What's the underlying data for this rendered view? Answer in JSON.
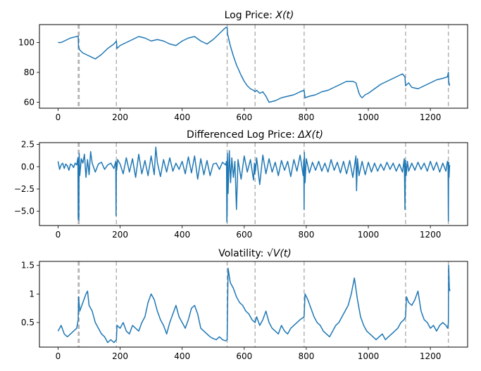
{
  "chart_data": [
    {
      "type": "line",
      "title": "Log Price: X(t)",
      "title_parts": {
        "main": "Log Price: ",
        "math": "X(t)"
      },
      "xlim": [
        -60,
        1320
      ],
      "ylim": [
        56,
        112
      ],
      "xticks": [
        0,
        200,
        400,
        600,
        800,
        1000,
        1200
      ],
      "yticks": [
        60,
        80,
        100
      ],
      "vlines": [
        65,
        68,
        188,
        545,
        635,
        793,
        1120,
        1258
      ],
      "series": [
        {
          "name": "log price",
          "color": "#1f77b4",
          "x": [
            0,
            10,
            20,
            30,
            40,
            50,
            60,
            65,
            66,
            70,
            80,
            100,
            120,
            140,
            160,
            180,
            188,
            190,
            200,
            220,
            240,
            260,
            280,
            300,
            320,
            340,
            360,
            380,
            400,
            420,
            440,
            460,
            480,
            500,
            520,
            540,
            545,
            546,
            555,
            565,
            575,
            590,
            600,
            610,
            620,
            630,
            635,
            640,
            650,
            660,
            670,
            680,
            700,
            720,
            740,
            760,
            780,
            793,
            796,
            810,
            830,
            850,
            870,
            890,
            910,
            930,
            950,
            960,
            970,
            975,
            980,
            990,
            1000,
            1020,
            1040,
            1060,
            1080,
            1100,
            1110,
            1118,
            1120,
            1130,
            1140,
            1160,
            1180,
            1200,
            1220,
            1240,
            1255,
            1258,
            1259,
            1262
          ],
          "y": [
            100,
            100,
            101,
            102,
            103,
            103.5,
            104,
            104.2,
            97,
            95,
            93,
            91,
            89,
            92,
            96,
            99,
            101,
            96,
            98,
            100,
            102,
            104,
            103,
            101,
            102,
            101,
            99,
            98,
            101,
            103,
            104,
            101,
            99,
            102,
            106,
            110,
            110,
            106,
            98,
            91,
            85,
            78,
            74,
            71,
            69,
            68,
            67,
            68,
            66,
            67,
            64,
            60,
            61,
            63,
            64,
            65,
            67,
            68,
            63,
            64,
            65,
            67,
            68,
            70,
            72,
            74,
            74,
            73,
            66,
            64,
            63,
            65,
            66,
            69,
            72,
            74,
            76,
            78,
            79,
            77,
            71,
            73,
            70,
            69,
            71,
            73,
            75,
            76,
            77,
            80,
            74,
            71
          ]
        }
      ]
    },
    {
      "type": "line",
      "title": "Differenced Log Price: ΔX(t)",
      "title_parts": {
        "main": "Differenced Log Price: ",
        "math": "ΔX(t)"
      },
      "xlim": [
        -60,
        1320
      ],
      "ylim": [
        -6.6,
        2.7
      ],
      "xticks": [
        0,
        200,
        400,
        600,
        800,
        1000,
        1200
      ],
      "yticks": [
        -5.0,
        -2.5,
        0.0,
        2.5
      ],
      "ytick_labels": [
        "−5.0",
        "−2.5",
        "0.0",
        "2.5"
      ],
      "vlines": [
        65,
        68,
        188,
        545,
        635,
        793,
        1120,
        1258
      ],
      "series": [
        {
          "name": "differenced log price",
          "color": "#1f77b4",
          "x": [
            0,
            5,
            10,
            15,
            20,
            25,
            30,
            35,
            40,
            45,
            50,
            55,
            60,
            64,
            65,
            66,
            67,
            68,
            70,
            75,
            80,
            85,
            90,
            95,
            100,
            105,
            110,
            120,
            130,
            140,
            150,
            160,
            170,
            180,
            186,
            187,
            188,
            189,
            192,
            200,
            210,
            220,
            230,
            240,
            250,
            260,
            270,
            280,
            290,
            300,
            310,
            315,
            320,
            330,
            340,
            350,
            360,
            370,
            380,
            390,
            400,
            410,
            420,
            430,
            440,
            450,
            460,
            470,
            480,
            490,
            500,
            510,
            520,
            530,
            540,
            543,
            544,
            545,
            546,
            548,
            552,
            556,
            560,
            565,
            570,
            575,
            580,
            590,
            600,
            610,
            620,
            630,
            633,
            634,
            635,
            636,
            640,
            650,
            660,
            670,
            680,
            690,
            700,
            710,
            720,
            730,
            740,
            750,
            760,
            770,
            780,
            790,
            792,
            793,
            794,
            796,
            800,
            810,
            820,
            830,
            840,
            850,
            860,
            870,
            880,
            890,
            900,
            910,
            920,
            930,
            940,
            950,
            960,
            962,
            965,
            970,
            980,
            990,
            1000,
            1010,
            1020,
            1030,
            1040,
            1050,
            1060,
            1070,
            1080,
            1090,
            1100,
            1110,
            1116,
            1118,
            1120,
            1122,
            1126,
            1130,
            1140,
            1150,
            1160,
            1170,
            1180,
            1190,
            1200,
            1210,
            1220,
            1230,
            1240,
            1250,
            1255,
            1257,
            1258,
            1259,
            1260,
            1262
          ],
          "y": [
            0.6,
            -0.3,
            0.2,
            0.4,
            -0.2,
            0.3,
            0.1,
            -0.4,
            0.3,
            0.2,
            -0.1,
            0.4,
            0.2,
            1.0,
            -5.9,
            0.8,
            -6.0,
            1.5,
            -1.0,
            0.9,
            0.4,
            1.4,
            -1.2,
            0.8,
            -0.9,
            1.7,
            0.4,
            -0.6,
            0.3,
            0.5,
            -0.3,
            0.2,
            0.4,
            -0.2,
            0.6,
            -5.5,
            0.5,
            -0.4,
            0.8,
            0.3,
            -0.8,
            1.0,
            -0.6,
            0.9,
            -1.2,
            1.4,
            -0.8,
            0.7,
            -1.0,
            1.2,
            -0.9,
            2.2,
            0.5,
            -1.1,
            0.8,
            -0.6,
            1.0,
            -0.5,
            0.4,
            -0.3,
            0.6,
            -0.8,
            1.1,
            -0.7,
            1.2,
            -1.4,
            0.9,
            -0.9,
            0.7,
            -1.0,
            0.3,
            0.4,
            -0.3,
            0.5,
            0.2,
            0.6,
            -6.2,
            -5.0,
            1.5,
            -3.0,
            1.8,
            -1.8,
            1.0,
            -1.2,
            0.6,
            -4.8,
            0.8,
            -1.4,
            1.2,
            -0.6,
            0.8,
            -1.5,
            0.4,
            -0.8,
            0.2,
            -0.5,
            1.0,
            -2.0,
            1.3,
            -0.8,
            0.9,
            -0.6,
            0.5,
            -1.0,
            0.7,
            -0.4,
            0.6,
            -1.1,
            0.8,
            -0.5,
            1.3,
            -1.0,
            0.8,
            -4.8,
            1.6,
            -1.8,
            0.9,
            -0.7,
            0.5,
            -0.4,
            0.6,
            -0.5,
            0.4,
            -0.6,
            0.8,
            -0.4,
            0.5,
            -0.7,
            0.6,
            -0.8,
            0.7,
            -1.2,
            1.2,
            -2.7,
            0.9,
            -1.0,
            0.6,
            -0.9,
            0.5,
            -0.6,
            0.4,
            -0.5,
            0.3,
            -0.4,
            0.5,
            -0.3,
            0.4,
            -0.5,
            0.3,
            -0.6,
            0.9,
            -4.8,
            0.7,
            -1.0,
            0.6,
            -0.5,
            0.4,
            -0.4,
            0.5,
            -0.3,
            0.4,
            -0.5,
            0.6,
            -0.4,
            0.5,
            -0.6,
            0.4,
            -0.5,
            0.6,
            0.3,
            -6.1,
            0.5,
            -1.2,
            0.2
          ]
        }
      ]
    },
    {
      "type": "line",
      "title": "Volatility: √V(t)",
      "title_parts": {
        "main": "Volatility: ",
        "math": "√V(t)"
      },
      "xlim": [
        -60,
        1320
      ],
      "ylim": [
        0.07,
        1.57
      ],
      "xticks": [
        0,
        200,
        400,
        600,
        800,
        1000,
        1200
      ],
      "yticks": [
        0.5,
        1.0,
        1.5
      ],
      "vlines": [
        65,
        68,
        188,
        545,
        635,
        793,
        1120,
        1258
      ],
      "series": [
        {
          "name": "volatility",
          "color": "#1f77b4",
          "x": [
            0,
            10,
            20,
            30,
            40,
            50,
            60,
            65,
            66,
            70,
            80,
            90,
            95,
            100,
            110,
            120,
            130,
            140,
            150,
            160,
            170,
            180,
            188,
            190,
            200,
            210,
            220,
            230,
            240,
            250,
            260,
            270,
            280,
            290,
            300,
            310,
            320,
            330,
            340,
            350,
            360,
            370,
            380,
            390,
            400,
            410,
            420,
            430,
            440,
            450,
            460,
            470,
            480,
            490,
            500,
            510,
            520,
            530,
            540,
            545,
            548,
            555,
            565,
            575,
            585,
            595,
            605,
            615,
            625,
            635,
            640,
            650,
            660,
            670,
            680,
            690,
            700,
            710,
            720,
            730,
            740,
            750,
            760,
            770,
            780,
            793,
            796,
            805,
            815,
            825,
            835,
            845,
            855,
            865,
            875,
            885,
            895,
            905,
            915,
            925,
            935,
            945,
            955,
            965,
            975,
            985,
            995,
            1005,
            1015,
            1025,
            1035,
            1045,
            1055,
            1065,
            1075,
            1085,
            1095,
            1105,
            1115,
            1120,
            1123,
            1130,
            1140,
            1150,
            1160,
            1170,
            1180,
            1190,
            1200,
            1210,
            1220,
            1230,
            1240,
            1250,
            1256,
            1258,
            1259,
            1261,
            1263
          ],
          "y": [
            0.35,
            0.45,
            0.3,
            0.25,
            0.3,
            0.35,
            0.4,
            0.55,
            0.95,
            0.7,
            0.85,
            1.0,
            1.05,
            0.8,
            0.7,
            0.5,
            0.4,
            0.3,
            0.25,
            0.15,
            0.2,
            0.15,
            0.2,
            0.45,
            0.4,
            0.5,
            0.35,
            0.3,
            0.45,
            0.4,
            0.35,
            0.5,
            0.6,
            0.85,
            1.0,
            0.9,
            0.7,
            0.55,
            0.45,
            0.3,
            0.5,
            0.65,
            0.8,
            0.6,
            0.5,
            0.4,
            0.55,
            0.75,
            0.8,
            0.65,
            0.4,
            0.35,
            0.3,
            0.25,
            0.22,
            0.2,
            0.25,
            0.2,
            0.18,
            0.2,
            1.45,
            1.2,
            1.1,
            0.95,
            0.85,
            0.8,
            0.7,
            0.65,
            0.55,
            0.5,
            0.6,
            0.45,
            0.55,
            0.7,
            0.5,
            0.4,
            0.35,
            0.3,
            0.45,
            0.35,
            0.3,
            0.4,
            0.45,
            0.5,
            0.55,
            0.6,
            1.0,
            0.9,
            0.75,
            0.6,
            0.5,
            0.45,
            0.35,
            0.3,
            0.25,
            0.35,
            0.45,
            0.5,
            0.6,
            0.7,
            0.8,
            1.0,
            1.28,
            0.9,
            0.6,
            0.45,
            0.35,
            0.3,
            0.25,
            0.2,
            0.25,
            0.3,
            0.2,
            0.25,
            0.3,
            0.35,
            0.4,
            0.5,
            0.55,
            0.6,
            0.95,
            0.85,
            0.8,
            0.9,
            1.05,
            0.7,
            0.55,
            0.5,
            0.4,
            0.45,
            0.35,
            0.45,
            0.5,
            0.45,
            0.4,
            0.5,
            1.5,
            1.1,
            1.05
          ]
        }
      ]
    }
  ]
}
